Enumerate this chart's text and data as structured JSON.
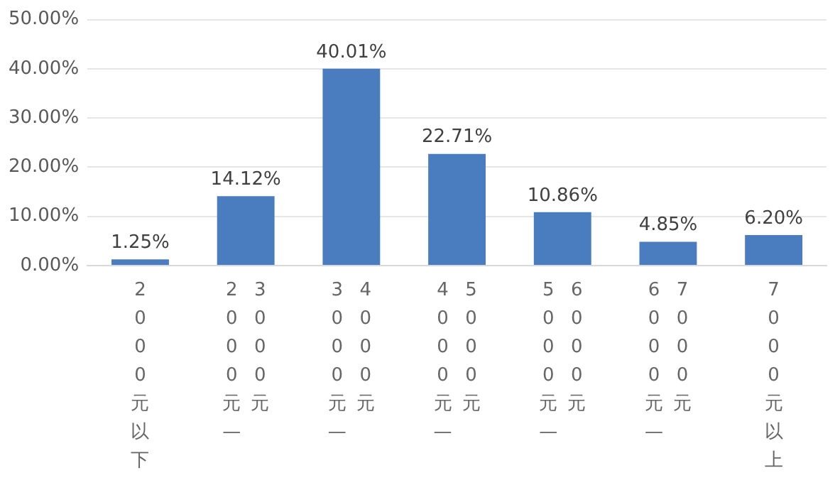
{
  "chart_data": {
    "type": "bar",
    "categories": [
      "2000元以下",
      "2000元—3000元",
      "3000元—4000元",
      "4000元—5000元",
      "5000元—6000元",
      "6000元—7000元",
      "7000元以上"
    ],
    "values": [
      1.25,
      14.12,
      40.01,
      22.71,
      10.86,
      4.85,
      6.2
    ],
    "value_labels": [
      "1.25%",
      "14.12%",
      "40.01%",
      "22.71%",
      "10.86%",
      "4.85%",
      "6.20%"
    ],
    "color": "#4a7cc0",
    "ylim": [
      0,
      50
    ],
    "yticks": [
      {
        "value": 0,
        "label": "0.00%"
      },
      {
        "value": 10,
        "label": "10.00%"
      },
      {
        "value": 20,
        "label": "20.00%"
      },
      {
        "value": 30,
        "label": "30.00%"
      },
      {
        "value": 40,
        "label": "40.00%"
      },
      {
        "value": 50,
        "label": "50.00%"
      }
    ],
    "grid": "y",
    "legend": false
  }
}
